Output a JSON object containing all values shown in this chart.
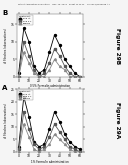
{
  "header_text": "Patent Application Publication    Nov. 13, 2014   Sheet 14 of 22    US 2014/0336088 A1",
  "fig_label_A": "Figure 29A",
  "fig_label_B": "Figure 29B",
  "panel_A_label": "A",
  "panel_B_label": "B",
  "panel_A_xlabel": "1% Formalin administration",
  "panel_B_xlabel": "0.5% Formalin administration",
  "panel_A_ylabel": "# Flinches (observations)",
  "panel_B_ylabel": "# Flinches (observations)",
  "background_color": "#f5f5f5",
  "header_color": "#d8d8d8",
  "plot_bg": "#ffffff",
  "legend_title": "Treatment",
  "legend_labels": [
    "PAP i.t.",
    "PAP s.c.",
    "Vehicle"
  ],
  "curve_colors": [
    "#000000",
    "#555555",
    "#888888"
  ],
  "fig_label_color": "#000000",
  "t": [
    0,
    5,
    10,
    15,
    20,
    25,
    30,
    35,
    40,
    45,
    50,
    55,
    60
  ],
  "y_A1": [
    2,
    22,
    14,
    4,
    2,
    3,
    9,
    16,
    12,
    7,
    4,
    2,
    1
  ],
  "y_A2": [
    1,
    16,
    9,
    3,
    1,
    2,
    6,
    11,
    8,
    5,
    2,
    1,
    0
  ],
  "y_A3": [
    0,
    11,
    6,
    1,
    0,
    1,
    3,
    7,
    5,
    3,
    1,
    0,
    0
  ],
  "y_B1": [
    1,
    14,
    10,
    3,
    1,
    2,
    7,
    12,
    9,
    5,
    3,
    1,
    0
  ],
  "y_B2": [
    0,
    10,
    6,
    2,
    0,
    1,
    4,
    8,
    6,
    3,
    1,
    0,
    0
  ],
  "y_B3": [
    0,
    7,
    4,
    1,
    0,
    0,
    2,
    5,
    3,
    2,
    0,
    0,
    0
  ],
  "ylim_A": [
    0,
    25
  ],
  "ylim_B": [
    0,
    18
  ],
  "yticks_A": [
    0,
    5,
    10,
    15,
    20,
    25
  ],
  "yticks_B": [
    0,
    5,
    10,
    15
  ],
  "xticks": [
    0,
    10,
    20,
    30,
    40,
    50,
    60
  ]
}
